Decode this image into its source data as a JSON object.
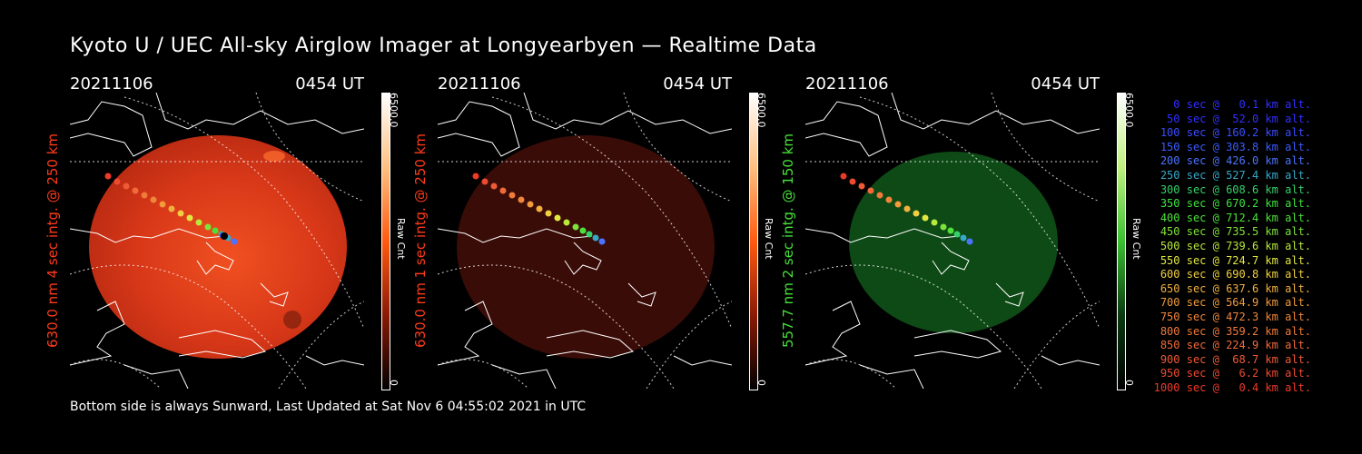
{
  "title": "Kyoto U / UEC All-sky Airglow Imager at Longyearbyen — Realtime Data",
  "footer": "Bottom side is always Sunward, Last Updated at Sat Nov  6 04:55:02 2021 in UTC",
  "panels": [
    {
      "date": "20211106",
      "time": "0454 UT",
      "ylabel": "630.0 nm 4 sec intg. @ 250 km",
      "label_color": "#ff3a1a",
      "cbar_max": "6500.0",
      "cbar_min": "0",
      "cbar_unit": "Raw Cnt",
      "theme": "red-bright"
    },
    {
      "date": "20211106",
      "time": "0454 UT",
      "ylabel": "630.0 nm 1 sec intg. @ 250 km",
      "label_color": "#ff3a1a",
      "cbar_max": "6500.0",
      "cbar_min": "0",
      "cbar_unit": "Raw Cnt",
      "theme": "red-dark"
    },
    {
      "date": "20211106",
      "time": "0454 UT",
      "ylabel": "557.7 nm 2 sec intg. @ 150 km",
      "label_color": "#46e03a",
      "cbar_max": "6500.0",
      "cbar_min": "0",
      "cbar_unit": "Raw Cnt",
      "theme": "green"
    }
  ],
  "legend": [
    {
      "text": "0 sec @   0.1 km alt.",
      "color": "#3030ff"
    },
    {
      "text": "50 sec @  52.0 km alt.",
      "color": "#3030ff"
    },
    {
      "text": "100 sec @ 160.2 km alt.",
      "color": "#3a4cff"
    },
    {
      "text": "150 sec @ 303.8 km alt.",
      "color": "#3a5cff"
    },
    {
      "text": "200 sec @ 426.0 km alt.",
      "color": "#4a74ff"
    },
    {
      "text": "250 sec @ 527.4 km alt.",
      "color": "#37a8c8"
    },
    {
      "text": "300 sec @ 608.6 km alt.",
      "color": "#36d06a"
    },
    {
      "text": "350 sec @ 670.2 km alt.",
      "color": "#3ee040"
    },
    {
      "text": "400 sec @ 712.4 km alt.",
      "color": "#4ee03a"
    },
    {
      "text": "450 sec @ 735.5 km alt.",
      "color": "#7ee23a"
    },
    {
      "text": "500 sec @ 739.6 km alt.",
      "color": "#b8e83a"
    },
    {
      "text": "550 sec @ 724.7 km alt.",
      "color": "#e0e840"
    },
    {
      "text": "600 sec @ 690.8 km alt.",
      "color": "#f0d040"
    },
    {
      "text": "650 sec @ 637.6 km alt.",
      "color": "#f0b040"
    },
    {
      "text": "700 sec @ 564.9 km alt.",
      "color": "#f09a3a"
    },
    {
      "text": "750 sec @ 472.3 km alt.",
      "color": "#f0863a"
    },
    {
      "text": "800 sec @ 359.2 km alt.",
      "color": "#f07a3a"
    },
    {
      "text": "850 sec @ 224.9 km alt.",
      "color": "#f06a3a"
    },
    {
      "text": "900 sec @  68.7 km alt.",
      "color": "#ee5a36"
    },
    {
      "text": "950 sec @   6.2 km alt.",
      "color": "#ee4a30"
    },
    {
      "text": "1000 sec @   0.4 km alt.",
      "color": "#ee3a2a"
    }
  ]
}
